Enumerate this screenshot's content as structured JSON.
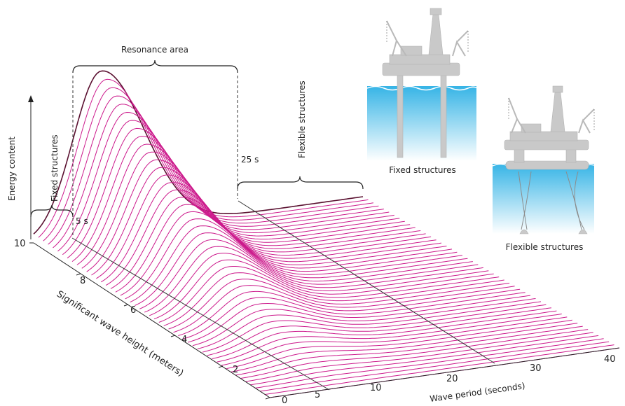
{
  "chart_data": {
    "type": "surface",
    "axes": {
      "x": {
        "label": "Wave period (seconds)",
        "ticks": [
          "5",
          "10",
          "20",
          "30",
          "40"
        ],
        "range": [
          0,
          40
        ]
      },
      "y": {
        "label": "Significant wave height (meters)",
        "ticks": [
          "0",
          "2",
          "4",
          "6",
          "8",
          "10"
        ],
        "range": [
          0,
          10
        ]
      },
      "z": {
        "label": "Energy content"
      }
    },
    "annotations": {
      "resonance": "Resonance area",
      "fixed_bracket": "Fixed structures",
      "flexible_bracket": "Flexible structures",
      "period_5": "5 s",
      "period_25": "25 s"
    },
    "illustrations": {
      "fixed_caption": "Fixed structures",
      "flexible_caption": "Flexible structures"
    },
    "series": {
      "count": 50,
      "color": "#cc1a8c",
      "peak_period": 11,
      "peak_relative_energy": 1.0
    }
  }
}
